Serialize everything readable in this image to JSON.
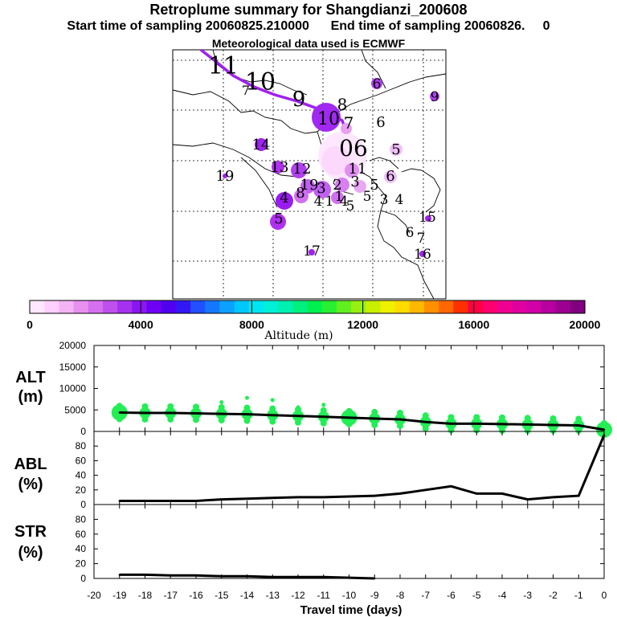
{
  "header": {
    "title": "Retroplume summary for Shangdianzi_200608",
    "sampling_line": "Start time of sampling 20060825.210000      End time of sampling 20060826.     0",
    "met_line": "Meteorological data used is ECMWF"
  },
  "colorbar": {
    "ticks": [
      "0",
      "4000",
      "8000",
      "12000",
      "16000",
      "20000"
    ],
    "label": "Altitude (m)",
    "colors": [
      "#ffe8ff",
      "#ffd0ff",
      "#f4b4f4",
      "#e890f0",
      "#d670ee",
      "#c050ee",
      "#a632f0",
      "#8c16f2",
      "#7000f4",
      "#5000f0",
      "#3218f4",
      "#2050ff",
      "#1478ff",
      "#0ca0ff",
      "#00c8ff",
      "#00e6f0",
      "#00f0d8",
      "#00f0b0",
      "#00f080",
      "#00f050",
      "#28f030",
      "#60f020",
      "#98f010",
      "#c8f000",
      "#f0f000",
      "#ffdc00",
      "#ffb800",
      "#ff9000",
      "#ff6800",
      "#ff3000",
      "#ff0040",
      "#ff0070",
      "#f00090",
      "#e000a0",
      "#d000a8",
      "#b800a0",
      "#9c0090",
      "#800080"
    ]
  },
  "map_labels": [
    {
      "text": "11",
      "x": 278,
      "y": 92,
      "size": 30
    },
    {
      "text": "10",
      "x": 324,
      "y": 112,
      "size": 30
    },
    {
      "text": "7",
      "x": 306,
      "y": 118,
      "size": 16
    },
    {
      "text": "9",
      "x": 372,
      "y": 132,
      "size": 26
    },
    {
      "text": "6",
      "x": 469,
      "y": 110,
      "size": 17
    },
    {
      "text": "9",
      "x": 541,
      "y": 126,
      "size": 17
    },
    {
      "text": "10",
      "x": 409,
      "y": 155,
      "size": 22
    },
    {
      "text": "8",
      "x": 426,
      "y": 137,
      "size": 20
    },
    {
      "text": "7",
      "x": 434,
      "y": 160,
      "size": 20
    },
    {
      "text": "6",
      "x": 474,
      "y": 158,
      "size": 18
    },
    {
      "text": "5",
      "x": 493,
      "y": 192,
      "size": 18
    },
    {
      "text": "06",
      "x": 440,
      "y": 194,
      "size": 28
    },
    {
      "text": "14",
      "x": 325,
      "y": 186,
      "size": 18
    },
    {
      "text": "19",
      "x": 280,
      "y": 225,
      "size": 18
    },
    {
      "text": "13",
      "x": 348,
      "y": 214,
      "size": 18
    },
    {
      "text": "12",
      "x": 376,
      "y": 216,
      "size": 18
    },
    {
      "text": "11",
      "x": 445,
      "y": 216,
      "size": 18
    },
    {
      "text": "6",
      "x": 486,
      "y": 225,
      "size": 18
    },
    {
      "text": "19",
      "x": 385,
      "y": 236,
      "size": 18
    },
    {
      "text": "8",
      "x": 374,
      "y": 246,
      "size": 18
    },
    {
      "text": "3",
      "x": 400,
      "y": 240,
      "size": 18
    },
    {
      "text": "2",
      "x": 420,
      "y": 236,
      "size": 18
    },
    {
      "text": "3",
      "x": 442,
      "y": 232,
      "size": 18
    },
    {
      "text": "5",
      "x": 466,
      "y": 236,
      "size": 18
    },
    {
      "text": "4",
      "x": 354,
      "y": 252,
      "size": 18
    },
    {
      "text": "4",
      "x": 396,
      "y": 256,
      "size": 17
    },
    {
      "text": "1",
      "x": 410,
      "y": 256,
      "size": 17
    },
    {
      "text": "1",
      "x": 422,
      "y": 250,
      "size": 17
    },
    {
      "text": "4",
      "x": 428,
      "y": 256,
      "size": 17
    },
    {
      "text": "5",
      "x": 436,
      "y": 262,
      "size": 17
    },
    {
      "text": "5",
      "x": 457,
      "y": 250,
      "size": 17
    },
    {
      "text": "3",
      "x": 478,
      "y": 254,
      "size": 17
    },
    {
      "text": "4",
      "x": 497,
      "y": 254,
      "size": 17
    },
    {
      "text": "15",
      "x": 532,
      "y": 276,
      "size": 17
    },
    {
      "text": "5",
      "x": 347,
      "y": 278,
      "size": 18
    },
    {
      "text": "6",
      "x": 510,
      "y": 295,
      "size": 17
    },
    {
      "text": "7",
      "x": 524,
      "y": 302,
      "size": 17
    },
    {
      "text": "17",
      "x": 388,
      "y": 318,
      "size": 17
    },
    {
      "text": "16",
      "x": 526,
      "y": 322,
      "size": 17
    }
  ],
  "panels": {
    "alt": {
      "label_line1": "ALT",
      "label_line2": "(m)",
      "yticks": [
        "20000",
        "15000",
        "10000",
        "5000",
        "0"
      ]
    },
    "abl": {
      "label_line1": "ABL",
      "label_line2": "(%)",
      "yticks": [
        "80",
        "60",
        "40",
        "20",
        "0"
      ]
    },
    "str": {
      "label_line1": "STR",
      "label_line2": "(%)",
      "yticks": [
        "80",
        "60",
        "40",
        "20",
        "0"
      ]
    }
  },
  "x_axis": {
    "label": "Travel time (days)",
    "ticks": [
      "-20",
      "-19",
      "-18",
      "-17",
      "-16",
      "-15",
      "-14",
      "-13",
      "-12",
      "-11",
      "-10",
      "-9",
      "-8",
      "-7",
      "-6",
      "-5",
      "-4",
      "-3",
      "-2",
      "-1",
      "0"
    ]
  },
  "chart_data": {
    "type": "line",
    "title": "Retroplume summary for Shangdianzi_200608",
    "xlabel": "Travel time (days)",
    "xlim": [
      -20,
      0
    ],
    "series": [
      {
        "name": "ALT",
        "ylabel": "ALT (m)",
        "ylim": [
          0,
          20000
        ],
        "x": [
          -19,
          -18,
          -17,
          -16,
          -15,
          -14,
          -13,
          -12,
          -11,
          -10,
          -9,
          -8,
          -7,
          -6,
          -5,
          -4,
          -3,
          -2,
          -1,
          0
        ],
        "values": [
          4400,
          4300,
          4300,
          4200,
          4100,
          4000,
          3800,
          3600,
          3400,
          3200,
          3000,
          2800,
          2200,
          1800,
          1800,
          1700,
          1600,
          1500,
          1400,
          400
        ]
      },
      {
        "name": "ABL",
        "ylabel": "ABL (%)",
        "ylim": [
          0,
          100
        ],
        "x": [
          -19,
          -18,
          -17,
          -16,
          -15,
          -14,
          -13,
          -12,
          -11,
          -10,
          -9,
          -8,
          -7,
          -6,
          -5,
          -4,
          -3,
          -2,
          -1,
          0
        ],
        "values": [
          5,
          5,
          5,
          5,
          7,
          8,
          9,
          10,
          10,
          11,
          12,
          15,
          20,
          25,
          15,
          15,
          7,
          10,
          12,
          95
        ]
      },
      {
        "name": "STR",
        "ylabel": "STR (%)",
        "ylim": [
          0,
          100
        ],
        "x": [
          -19,
          -18,
          -17,
          -16,
          -15,
          -14,
          -13,
          -12,
          -11,
          -10,
          -9
        ],
        "values": [
          5,
          5,
          4,
          4,
          3,
          3,
          2,
          2,
          2,
          1,
          0
        ]
      }
    ]
  }
}
